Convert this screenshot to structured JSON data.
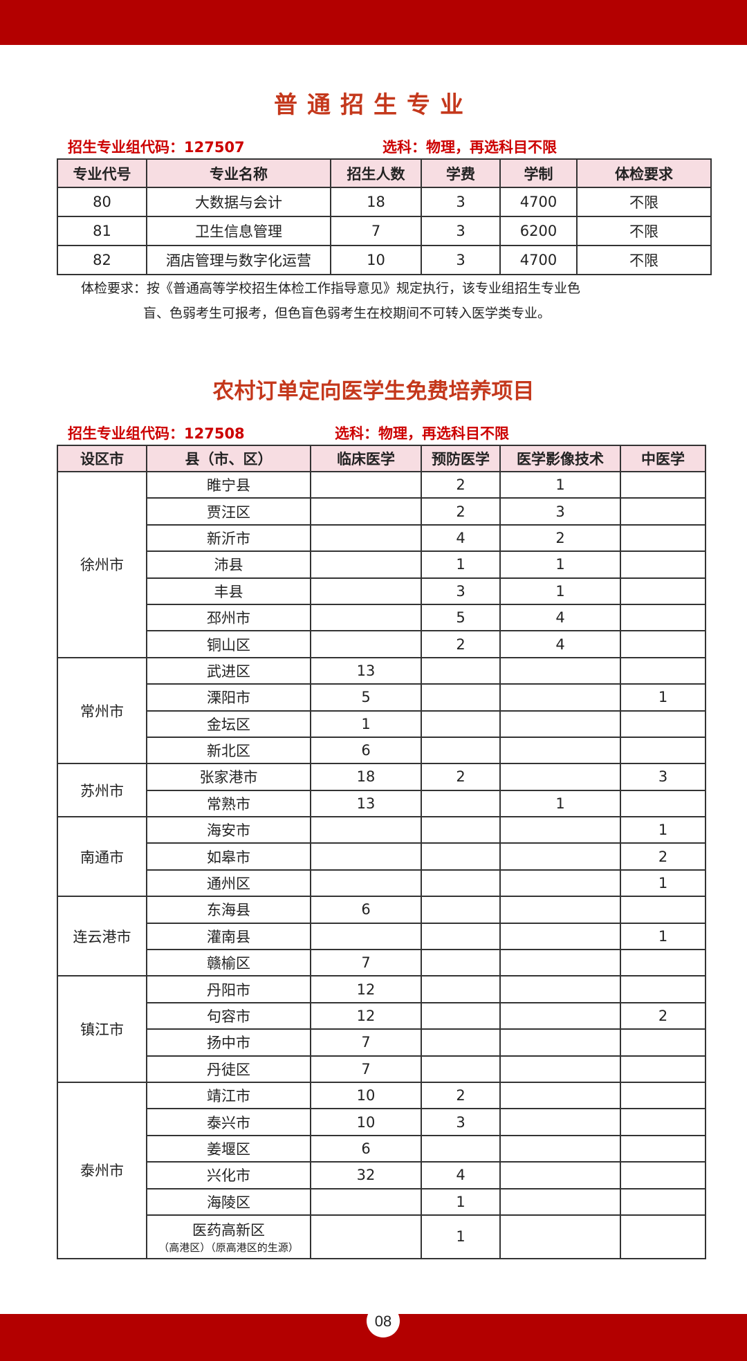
{
  "colors": {
    "banner": "#b30000",
    "title": "#c4381c",
    "subtitle": "#cc0000",
    "header_bg": "#f7dde2"
  },
  "section1": {
    "title": "普通招生专业",
    "group_code": "招生专业组代码：127507",
    "subjects": "选科：物理，再选科目不限",
    "headers": [
      "专业代号",
      "专业名称",
      "招生人数",
      "学费",
      "学制",
      "体检要求"
    ],
    "rows": [
      [
        "80",
        "大数据与会计",
        "18",
        "3",
        "4700",
        "不限"
      ],
      [
        "81",
        "卫生信息管理",
        "7",
        "3",
        "6200",
        "不限"
      ],
      [
        "82",
        "酒店管理与数字化运营",
        "10",
        "3",
        "4700",
        "不限"
      ]
    ],
    "note_line1": "体检要求：按《普通高等学校招生体检工作指导意见》规定执行，该专业组招生专业色",
    "note_line2": "盲、色弱考生可报考，但色盲色弱考生在校期间不可转入医学类专业。"
  },
  "section2": {
    "title": "农村订单定向医学生免费培养项目",
    "group_code": "招生专业组代码：127508",
    "subjects": "选科：物理，再选科目不限",
    "headers": [
      "设区市",
      "县（市、区）",
      "临床医学",
      "预防医学",
      "医学影像技术",
      "中医学"
    ],
    "groups": [
      {
        "city": "徐州市",
        "rows": [
          [
            "睢宁县",
            "",
            "2",
            "1",
            ""
          ],
          [
            "贾汪区",
            "",
            "2",
            "3",
            ""
          ],
          [
            "新沂市",
            "",
            "4",
            "2",
            ""
          ],
          [
            "沛县",
            "",
            "1",
            "1",
            ""
          ],
          [
            "丰县",
            "",
            "3",
            "1",
            ""
          ],
          [
            "邳州市",
            "",
            "5",
            "4",
            ""
          ],
          [
            "铜山区",
            "",
            "2",
            "4",
            ""
          ]
        ]
      },
      {
        "city": "常州市",
        "rows": [
          [
            "武进区",
            "13",
            "",
            "",
            ""
          ],
          [
            "溧阳市",
            "5",
            "",
            "",
            "1"
          ],
          [
            "金坛区",
            "1",
            "",
            "",
            ""
          ],
          [
            "新北区",
            "6",
            "",
            "",
            ""
          ]
        ]
      },
      {
        "city": "苏州市",
        "rows": [
          [
            "张家港市",
            "18",
            "2",
            "",
            "3"
          ],
          [
            "常熟市",
            "13",
            "",
            "1",
            ""
          ]
        ]
      },
      {
        "city": "南通市",
        "rows": [
          [
            "海安市",
            "",
            "",
            "",
            "1"
          ],
          [
            "如皋市",
            "",
            "",
            "",
            "2"
          ],
          [
            "通州区",
            "",
            "",
            "",
            "1"
          ]
        ]
      },
      {
        "city": "连云港市",
        "rows": [
          [
            "东海县",
            "6",
            "",
            "",
            ""
          ],
          [
            "灌南县",
            "",
            "",
            "",
            "1"
          ],
          [
            "赣榆区",
            "7",
            "",
            "",
            ""
          ]
        ]
      },
      {
        "city": "镇江市",
        "rows": [
          [
            "丹阳市",
            "12",
            "",
            "",
            ""
          ],
          [
            "句容市",
            "12",
            "",
            "",
            "2"
          ],
          [
            "扬中市",
            "7",
            "",
            "",
            ""
          ],
          [
            "丹徒区",
            "7",
            "",
            "",
            ""
          ]
        ]
      },
      {
        "city": "泰州市",
        "rows": [
          [
            "靖江市",
            "10",
            "2",
            "",
            ""
          ],
          [
            "泰兴市",
            "10",
            "3",
            "",
            ""
          ],
          [
            "姜堰区",
            "6",
            "",
            "",
            ""
          ],
          [
            "兴化市",
            "32",
            "4",
            "",
            ""
          ],
          [
            "海陵区",
            "",
            "1",
            "",
            ""
          ],
          [
            "医药高新区",
            "",
            "1",
            "",
            ""
          ]
        ]
      }
    ],
    "last_row_subnote": "（高港区）（原高港区的生源）"
  },
  "footer": {
    "page_number": "08"
  }
}
